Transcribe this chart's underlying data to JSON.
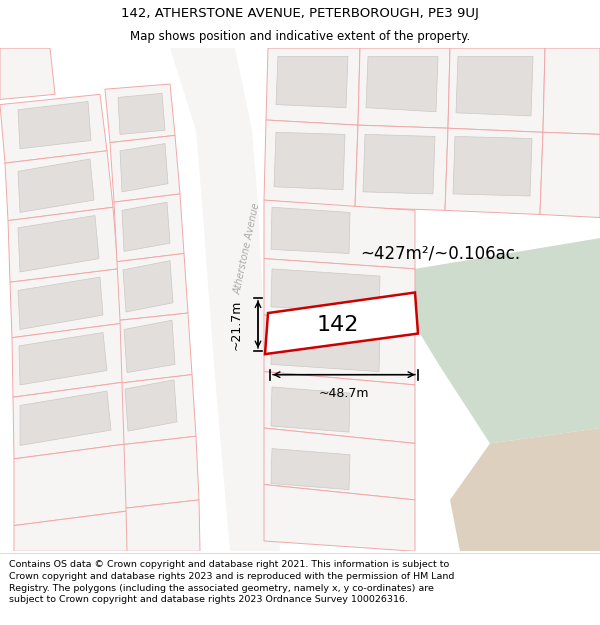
{
  "title_line1": "142, ATHERSTONE AVENUE, PETERBOROUGH, PE3 9UJ",
  "title_line2": "Map shows position and indicative extent of the property.",
  "footer_text": "Contains OS data © Crown copyright and database right 2021. This information is subject to Crown copyright and database rights 2023 and is reproduced with the permission of HM Land Registry. The polygons (including the associated geometry, namely x, y co-ordinates) are subject to Crown copyright and database rights 2023 Ordnance Survey 100026316.",
  "area_label": "~427m²/~0.106ac.",
  "width_label": "~48.7m",
  "height_label": "~21.7m",
  "plot_number": "142",
  "street_label": "Atherstone Avenue",
  "title_fontsize": 9.5,
  "subtitle_fontsize": 8.5,
  "footer_fontsize": 6.8
}
